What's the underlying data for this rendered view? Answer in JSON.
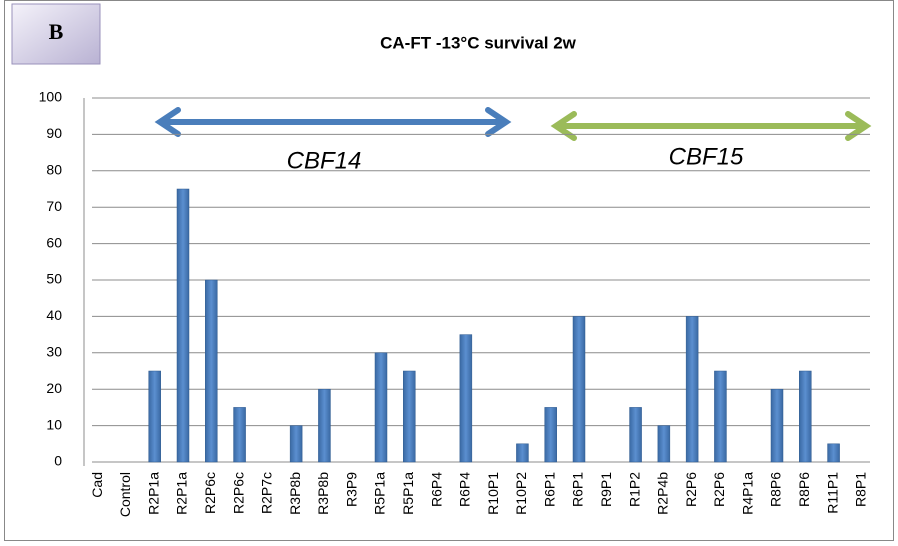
{
  "chart_data": {
    "type": "bar",
    "panel_label": "B",
    "title": "CA-FT -13°C survival 2w",
    "annotations": [
      "CBF14",
      "CBF15"
    ],
    "categories": [
      "Cad",
      "Control",
      "R2P1a",
      "R2P1a",
      "R2P6c",
      "R2P6c",
      "R2P7c",
      "R3P8b",
      "R3P8b",
      "R3P9",
      "R5P1a",
      "R5P1a",
      "R6P4",
      "R6P4",
      "R10P1",
      "R10P2",
      "R6P1",
      "R6P1",
      "R9P1",
      "R1P2",
      "R2P4b",
      "R2P6",
      "R2P6",
      "R4P1a",
      "R8P6",
      "R8P6",
      "R11P1",
      "R8P1"
    ],
    "values": [
      0,
      0,
      25,
      75,
      50,
      15,
      0,
      10,
      20,
      0,
      30,
      25,
      0,
      35,
      0,
      5,
      15,
      40,
      0,
      15,
      10,
      40,
      25,
      0,
      20,
      25,
      5,
      0
    ],
    "color": "#4a7ebb",
    "ylim": [
      0,
      100
    ],
    "yticks": [
      0,
      10,
      20,
      30,
      40,
      50,
      60,
      70,
      80,
      90,
      100
    ],
    "grid": true
  }
}
